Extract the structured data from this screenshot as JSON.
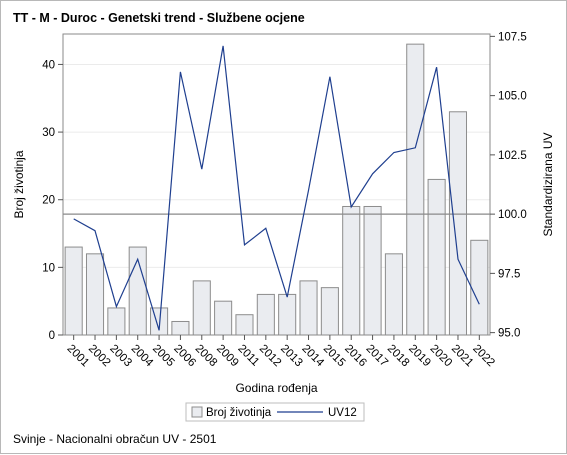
{
  "chart_data": {
    "type": "bar+line",
    "title": "TT - M - Duroc - Genetski trend - Službene ocjene",
    "xlabel": "Godina rođenja",
    "ylabel_left": "Broj životinja",
    "ylabel_right": "Standardizirana UV",
    "categories": [
      "2001",
      "2002",
      "2003",
      "2004",
      "2005",
      "2006",
      "2008",
      "2009",
      "2011",
      "2012",
      "2013",
      "2014",
      "2015",
      "2016",
      "2017",
      "2018",
      "2019",
      "2020",
      "2021",
      "2022"
    ],
    "bars": {
      "name": "Broj životinja",
      "values": [
        13,
        12,
        4,
        13,
        4,
        2,
        8,
        5,
        3,
        6,
        6,
        8,
        7,
        19,
        19,
        12,
        43,
        23,
        33,
        14
      ],
      "ylim": [
        0,
        44.5
      ],
      "ticks": [
        0,
        10,
        20,
        30,
        40
      ]
    },
    "line": {
      "name": "UV12",
      "values": [
        99.8,
        99.3,
        96.1,
        98.1,
        95.1,
        106.0,
        101.9,
        107.1,
        98.7,
        99.4,
        96.5,
        101.0,
        105.8,
        100.3,
        101.7,
        102.6,
        102.8,
        106.2,
        98.1,
        96.2
      ],
      "ylim": [
        94.9,
        107.6
      ],
      "ticks": [
        "95.0",
        "97.5",
        "100.0",
        "102.5",
        "105.0",
        "107.5"
      ]
    },
    "reference_line_right": 100.0,
    "grid": "horizontal",
    "legend": "bottom-center",
    "colors": {
      "bar_fill": "#eaecf0",
      "bar_stroke": "#8c8c8c",
      "line": "#1f3f8f",
      "grid": "#ebebeb",
      "reference": "#8a8a8a"
    }
  },
  "footer": "Svinje - Nacionalni obračun UV - 2501"
}
